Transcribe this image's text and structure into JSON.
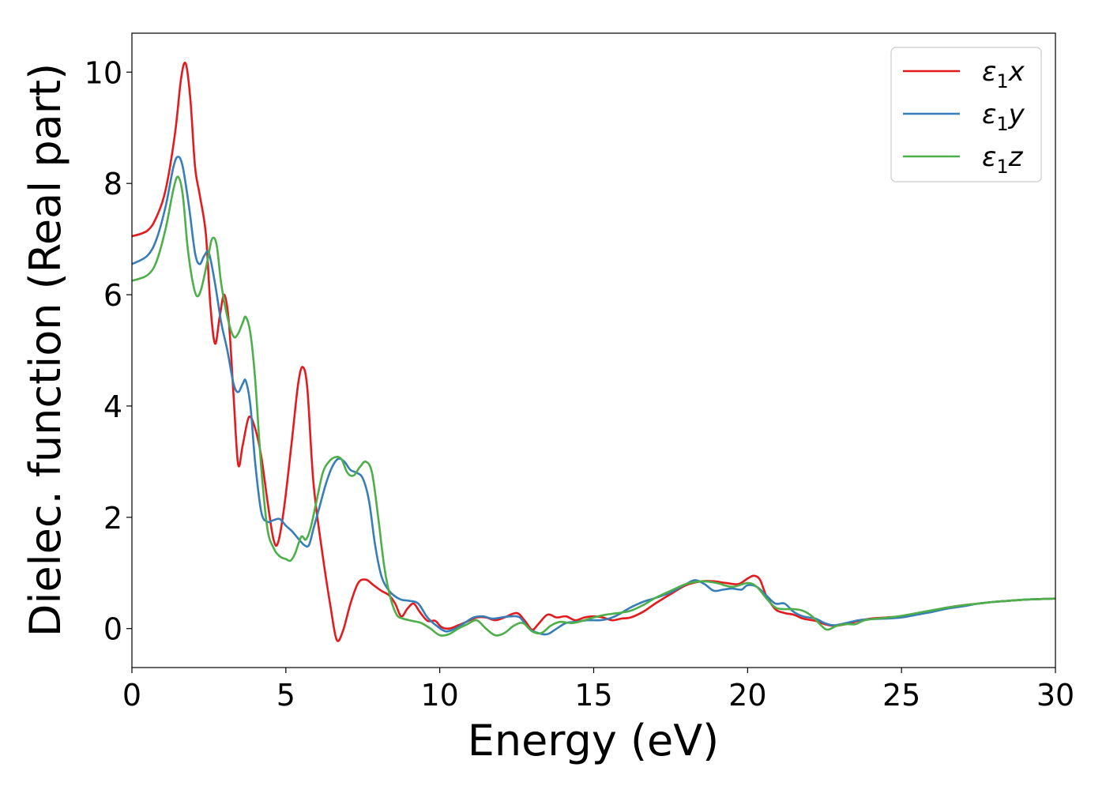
{
  "chart_data": {
    "type": "line",
    "title": "",
    "xlabel": "Energy (eV)",
    "ylabel": "Dielec. function (Real part)",
    "xlim": [
      0,
      30
    ],
    "ylim": [
      -0.7,
      10.7
    ],
    "xticks": [
      0,
      5,
      10,
      15,
      20,
      25,
      30
    ],
    "yticks": [
      0,
      2,
      4,
      6,
      8,
      10
    ],
    "xtick_labels": [
      "0",
      "5",
      "10",
      "15",
      "20",
      "25",
      "30"
    ],
    "ytick_labels": [
      "0",
      "2",
      "4",
      "6",
      "8",
      "10"
    ],
    "grid": false,
    "legend_position": "top-right",
    "series": [
      {
        "name": "ε₁x",
        "legend_base": "ε",
        "legend_sub": "1",
        "legend_suffix": "x",
        "color": "#e41a1c",
        "points": [
          [
            0,
            7.05
          ],
          [
            0.5,
            7.15
          ],
          [
            0.8,
            7.4
          ],
          [
            1.1,
            7.9
          ],
          [
            1.4,
            8.9
          ],
          [
            1.6,
            9.9
          ],
          [
            1.75,
            10.15
          ],
          [
            1.9,
            9.5
          ],
          [
            2.05,
            8.3
          ],
          [
            2.2,
            7.8
          ],
          [
            2.4,
            7.1
          ],
          [
            2.55,
            5.8
          ],
          [
            2.7,
            5.12
          ],
          [
            2.85,
            5.6
          ],
          [
            3.0,
            6.0
          ],
          [
            3.15,
            5.5
          ],
          [
            3.3,
            4.2
          ],
          [
            3.45,
            2.95
          ],
          [
            3.6,
            3.3
          ],
          [
            3.8,
            3.8
          ],
          [
            4.0,
            3.6
          ],
          [
            4.2,
            3.1
          ],
          [
            4.4,
            2.3
          ],
          [
            4.6,
            1.6
          ],
          [
            4.75,
            1.55
          ],
          [
            4.95,
            2.2
          ],
          [
            5.2,
            3.4
          ],
          [
            5.4,
            4.4
          ],
          [
            5.55,
            4.7
          ],
          [
            5.7,
            4.3
          ],
          [
            5.9,
            2.6
          ],
          [
            6.2,
            1.3
          ],
          [
            6.45,
            0.4
          ],
          [
            6.65,
            -0.2
          ],
          [
            6.85,
            -0.05
          ],
          [
            7.1,
            0.45
          ],
          [
            7.35,
            0.82
          ],
          [
            7.6,
            0.88
          ],
          [
            7.85,
            0.78
          ],
          [
            8.1,
            0.68
          ],
          [
            8.35,
            0.6
          ],
          [
            8.55,
            0.45
          ],
          [
            8.75,
            0.22
          ],
          [
            8.95,
            0.36
          ],
          [
            9.15,
            0.45
          ],
          [
            9.35,
            0.3
          ],
          [
            9.6,
            0.14
          ],
          [
            9.85,
            0.14
          ],
          [
            10.05,
            0.03
          ],
          [
            10.3,
            0.0
          ],
          [
            10.6,
            0.06
          ],
          [
            10.9,
            0.13
          ],
          [
            11.2,
            0.2
          ],
          [
            11.5,
            0.2
          ],
          [
            11.8,
            0.15
          ],
          [
            12.1,
            0.2
          ],
          [
            12.5,
            0.28
          ],
          [
            12.75,
            0.15
          ],
          [
            13.0,
            -0.02
          ],
          [
            13.2,
            0.08
          ],
          [
            13.5,
            0.25
          ],
          [
            13.8,
            0.2
          ],
          [
            14.1,
            0.22
          ],
          [
            14.4,
            0.15
          ],
          [
            14.7,
            0.2
          ],
          [
            15.0,
            0.22
          ],
          [
            15.3,
            0.2
          ],
          [
            15.6,
            0.15
          ],
          [
            15.9,
            0.18
          ],
          [
            16.2,
            0.2
          ],
          [
            16.6,
            0.3
          ],
          [
            17.0,
            0.45
          ],
          [
            17.5,
            0.62
          ],
          [
            18.0,
            0.78
          ],
          [
            18.5,
            0.85
          ],
          [
            18.9,
            0.85
          ],
          [
            19.3,
            0.82
          ],
          [
            19.7,
            0.8
          ],
          [
            20.0,
            0.9
          ],
          [
            20.2,
            0.95
          ],
          [
            20.4,
            0.88
          ],
          [
            20.6,
            0.6
          ],
          [
            20.9,
            0.35
          ],
          [
            21.2,
            0.28
          ],
          [
            21.5,
            0.25
          ],
          [
            21.8,
            0.18
          ],
          [
            22.2,
            0.14
          ],
          [
            22.5,
            0.08
          ],
          [
            22.8,
            0.05
          ],
          [
            23.2,
            0.08
          ],
          [
            23.6,
            0.14
          ],
          [
            24.0,
            0.18
          ],
          [
            24.5,
            0.2
          ],
          [
            25.0,
            0.22
          ],
          [
            25.5,
            0.27
          ],
          [
            26.0,
            0.32
          ],
          [
            26.5,
            0.38
          ],
          [
            27.0,
            0.42
          ],
          [
            27.5,
            0.45
          ],
          [
            28.0,
            0.48
          ],
          [
            28.5,
            0.5
          ],
          [
            29.0,
            0.52
          ],
          [
            29.5,
            0.53
          ],
          [
            30.0,
            0.54
          ]
        ]
      },
      {
        "name": "ε₁y",
        "legend_base": "ε",
        "legend_sub": "1",
        "legend_suffix": "y",
        "color": "#377eb8",
        "points": [
          [
            0,
            6.55
          ],
          [
            0.5,
            6.7
          ],
          [
            0.8,
            7.0
          ],
          [
            1.1,
            7.6
          ],
          [
            1.35,
            8.3
          ],
          [
            1.5,
            8.48
          ],
          [
            1.65,
            8.3
          ],
          [
            1.85,
            7.6
          ],
          [
            2.05,
            6.75
          ],
          [
            2.2,
            6.55
          ],
          [
            2.35,
            6.7
          ],
          [
            2.5,
            6.75
          ],
          [
            2.7,
            6.2
          ],
          [
            2.9,
            5.5
          ],
          [
            3.1,
            5.0
          ],
          [
            3.3,
            4.4
          ],
          [
            3.45,
            4.25
          ],
          [
            3.6,
            4.4
          ],
          [
            3.7,
            4.45
          ],
          [
            3.85,
            4.0
          ],
          [
            4.0,
            3.0
          ],
          [
            4.2,
            2.1
          ],
          [
            4.4,
            1.92
          ],
          [
            4.6,
            1.95
          ],
          [
            4.8,
            1.97
          ],
          [
            5.0,
            1.85
          ],
          [
            5.2,
            1.75
          ],
          [
            5.4,
            1.62
          ],
          [
            5.6,
            1.5
          ],
          [
            5.75,
            1.5
          ],
          [
            5.9,
            1.8
          ],
          [
            6.1,
            2.2
          ],
          [
            6.3,
            2.6
          ],
          [
            6.5,
            2.9
          ],
          [
            6.7,
            3.05
          ],
          [
            6.9,
            3.0
          ],
          [
            7.1,
            2.85
          ],
          [
            7.3,
            2.8
          ],
          [
            7.5,
            2.7
          ],
          [
            7.7,
            2.3
          ],
          [
            7.9,
            1.5
          ],
          [
            8.1,
            0.95
          ],
          [
            8.3,
            0.72
          ],
          [
            8.5,
            0.6
          ],
          [
            8.75,
            0.52
          ],
          [
            9.0,
            0.5
          ],
          [
            9.3,
            0.45
          ],
          [
            9.6,
            0.2
          ],
          [
            9.9,
            0.05
          ],
          [
            10.2,
            -0.05
          ],
          [
            10.5,
            0.0
          ],
          [
            10.8,
            0.1
          ],
          [
            11.1,
            0.2
          ],
          [
            11.4,
            0.22
          ],
          [
            11.7,
            0.18
          ],
          [
            12.0,
            0.2
          ],
          [
            12.3,
            0.22
          ],
          [
            12.6,
            0.2
          ],
          [
            12.9,
            0.0
          ],
          [
            13.2,
            -0.08
          ],
          [
            13.5,
            -0.1
          ],
          [
            13.8,
            0.0
          ],
          [
            14.1,
            0.1
          ],
          [
            14.4,
            0.12
          ],
          [
            14.8,
            0.15
          ],
          [
            15.2,
            0.15
          ],
          [
            15.5,
            0.18
          ],
          [
            15.8,
            0.25
          ],
          [
            16.2,
            0.38
          ],
          [
            16.6,
            0.48
          ],
          [
            17.0,
            0.55
          ],
          [
            17.5,
            0.65
          ],
          [
            18.0,
            0.8
          ],
          [
            18.3,
            0.87
          ],
          [
            18.6,
            0.8
          ],
          [
            18.9,
            0.68
          ],
          [
            19.2,
            0.7
          ],
          [
            19.5,
            0.72
          ],
          [
            19.8,
            0.7
          ],
          [
            20.0,
            0.78
          ],
          [
            20.3,
            0.75
          ],
          [
            20.6,
            0.6
          ],
          [
            20.9,
            0.45
          ],
          [
            21.2,
            0.45
          ],
          [
            21.5,
            0.3
          ],
          [
            21.8,
            0.22
          ],
          [
            22.2,
            0.18
          ],
          [
            22.5,
            0.1
          ],
          [
            22.8,
            0.06
          ],
          [
            23.2,
            0.1
          ],
          [
            23.6,
            0.15
          ],
          [
            24.0,
            0.17
          ],
          [
            24.5,
            0.18
          ],
          [
            25.0,
            0.2
          ],
          [
            25.5,
            0.25
          ],
          [
            26.0,
            0.3
          ],
          [
            26.5,
            0.36
          ],
          [
            27.0,
            0.4
          ],
          [
            27.5,
            0.45
          ],
          [
            28.0,
            0.48
          ],
          [
            28.5,
            0.5
          ],
          [
            29.0,
            0.52
          ],
          [
            29.5,
            0.53
          ],
          [
            30.0,
            0.54
          ]
        ]
      },
      {
        "name": "ε₁z",
        "legend_base": "ε",
        "legend_sub": "1",
        "legend_suffix": "z",
        "color": "#4daf4a",
        "points": [
          [
            0,
            6.25
          ],
          [
            0.5,
            6.35
          ],
          [
            0.8,
            6.6
          ],
          [
            1.1,
            7.2
          ],
          [
            1.35,
            7.9
          ],
          [
            1.5,
            8.12
          ],
          [
            1.65,
            7.8
          ],
          [
            1.8,
            6.9
          ],
          [
            1.95,
            6.3
          ],
          [
            2.1,
            5.98
          ],
          [
            2.25,
            6.1
          ],
          [
            2.45,
            6.6
          ],
          [
            2.6,
            7.0
          ],
          [
            2.75,
            6.9
          ],
          [
            2.9,
            6.2
          ],
          [
            3.1,
            5.6
          ],
          [
            3.3,
            5.25
          ],
          [
            3.45,
            5.3
          ],
          [
            3.6,
            5.5
          ],
          [
            3.7,
            5.6
          ],
          [
            3.85,
            5.3
          ],
          [
            4.0,
            4.5
          ],
          [
            4.2,
            2.9
          ],
          [
            4.4,
            1.8
          ],
          [
            4.6,
            1.45
          ],
          [
            4.8,
            1.3
          ],
          [
            5.0,
            1.25
          ],
          [
            5.15,
            1.22
          ],
          [
            5.3,
            1.35
          ],
          [
            5.5,
            1.65
          ],
          [
            5.65,
            1.6
          ],
          [
            5.8,
            1.8
          ],
          [
            6.0,
            2.3
          ],
          [
            6.2,
            2.8
          ],
          [
            6.4,
            3.0
          ],
          [
            6.6,
            3.08
          ],
          [
            6.8,
            3.05
          ],
          [
            7.0,
            2.8
          ],
          [
            7.2,
            2.75
          ],
          [
            7.4,
            2.9
          ],
          [
            7.6,
            3.0
          ],
          [
            7.8,
            2.8
          ],
          [
            8.0,
            2.0
          ],
          [
            8.2,
            1.1
          ],
          [
            8.4,
            0.55
          ],
          [
            8.6,
            0.25
          ],
          [
            8.8,
            0.18
          ],
          [
            9.1,
            0.14
          ],
          [
            9.4,
            0.1
          ],
          [
            9.7,
            0.0
          ],
          [
            10.0,
            -0.12
          ],
          [
            10.3,
            -0.1
          ],
          [
            10.6,
            0.0
          ],
          [
            10.9,
            0.08
          ],
          [
            11.2,
            0.15
          ],
          [
            11.5,
            0.0
          ],
          [
            11.8,
            -0.12
          ],
          [
            12.1,
            -0.08
          ],
          [
            12.4,
            0.05
          ],
          [
            12.7,
            0.1
          ],
          [
            13.0,
            -0.05
          ],
          [
            13.3,
            -0.08
          ],
          [
            13.6,
            0.05
          ],
          [
            13.9,
            0.12
          ],
          [
            14.3,
            0.1
          ],
          [
            14.7,
            0.15
          ],
          [
            15.0,
            0.2
          ],
          [
            15.4,
            0.25
          ],
          [
            15.8,
            0.28
          ],
          [
            16.2,
            0.32
          ],
          [
            16.6,
            0.42
          ],
          [
            17.0,
            0.55
          ],
          [
            17.5,
            0.68
          ],
          [
            18.0,
            0.8
          ],
          [
            18.5,
            0.85
          ],
          [
            19.0,
            0.82
          ],
          [
            19.5,
            0.75
          ],
          [
            20.0,
            0.82
          ],
          [
            20.3,
            0.75
          ],
          [
            20.6,
            0.55
          ],
          [
            20.9,
            0.38
          ],
          [
            21.2,
            0.35
          ],
          [
            21.5,
            0.35
          ],
          [
            21.8,
            0.32
          ],
          [
            22.1,
            0.22
          ],
          [
            22.4,
            0.05
          ],
          [
            22.6,
            -0.02
          ],
          [
            22.9,
            0.05
          ],
          [
            23.2,
            0.08
          ],
          [
            23.5,
            0.08
          ],
          [
            23.8,
            0.15
          ],
          [
            24.2,
            0.18
          ],
          [
            24.6,
            0.2
          ],
          [
            25.0,
            0.23
          ],
          [
            25.5,
            0.28
          ],
          [
            26.0,
            0.33
          ],
          [
            26.5,
            0.38
          ],
          [
            27.0,
            0.42
          ],
          [
            27.5,
            0.45
          ],
          [
            28.0,
            0.48
          ],
          [
            28.5,
            0.5
          ],
          [
            29.0,
            0.52
          ],
          [
            29.5,
            0.53
          ],
          [
            30.0,
            0.54
          ]
        ]
      }
    ]
  }
}
